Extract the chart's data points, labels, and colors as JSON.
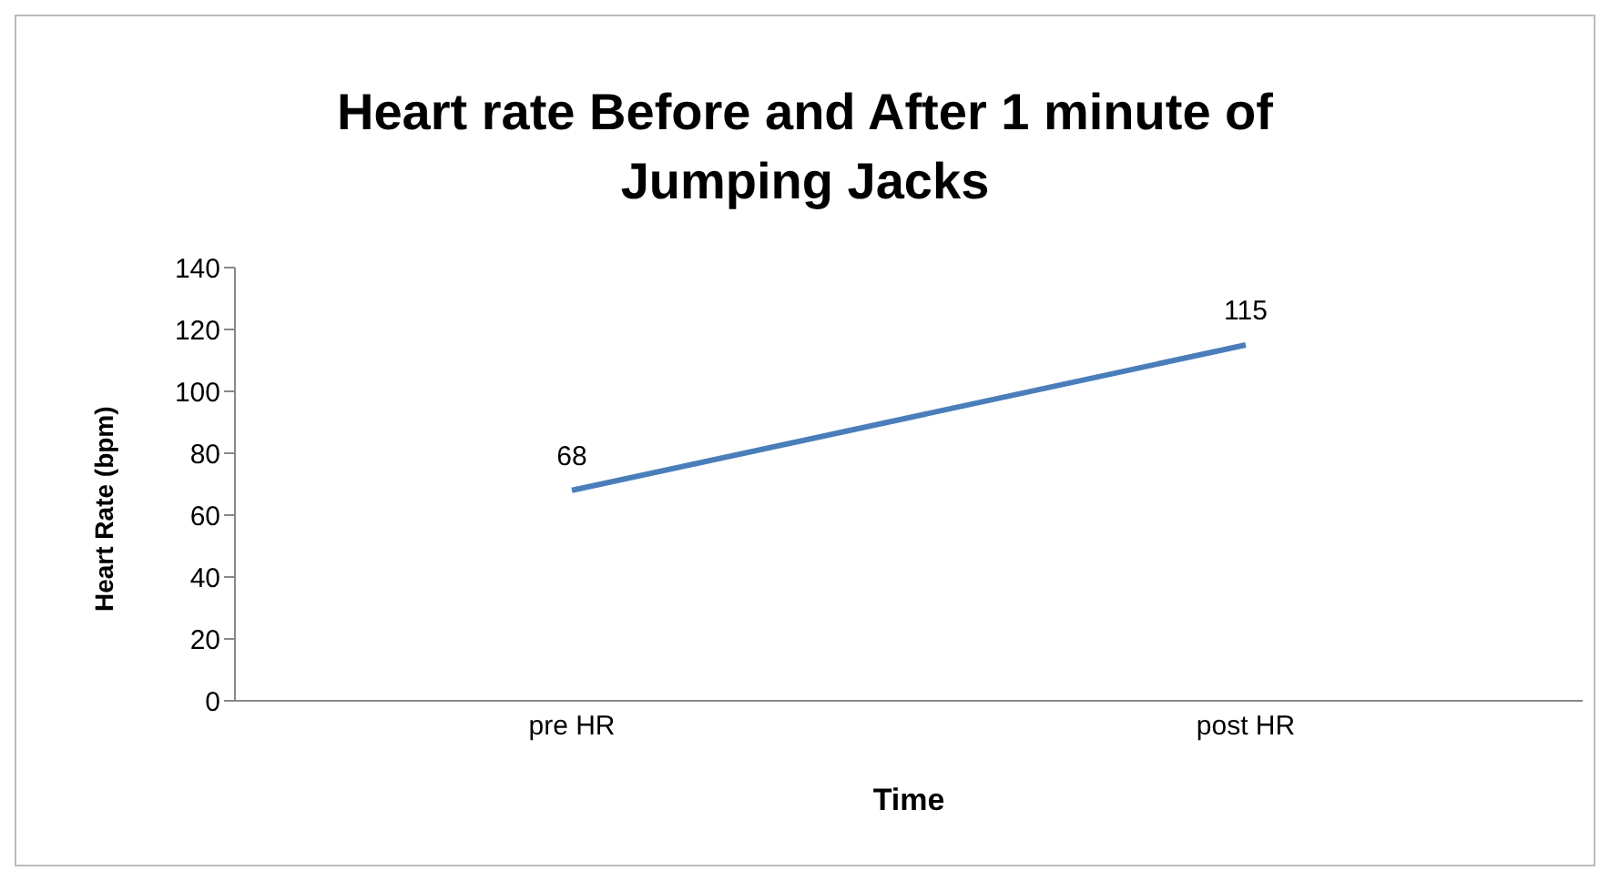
{
  "chart_data": {
    "type": "line",
    "title": "Heart rate Before and After 1 minute of Jumping Jacks",
    "xlabel": "Time",
    "ylabel": "Heart Rate (bpm)",
    "categories": [
      "pre HR",
      "post HR"
    ],
    "series": [
      {
        "color": "#4a7ebb",
        "values": [
          68,
          115
        ]
      }
    ],
    "ylim": [
      0,
      140
    ],
    "yticks": [
      0,
      20,
      40,
      60,
      80,
      100,
      120,
      140
    ],
    "data_labels": true,
    "marker": "none"
  }
}
